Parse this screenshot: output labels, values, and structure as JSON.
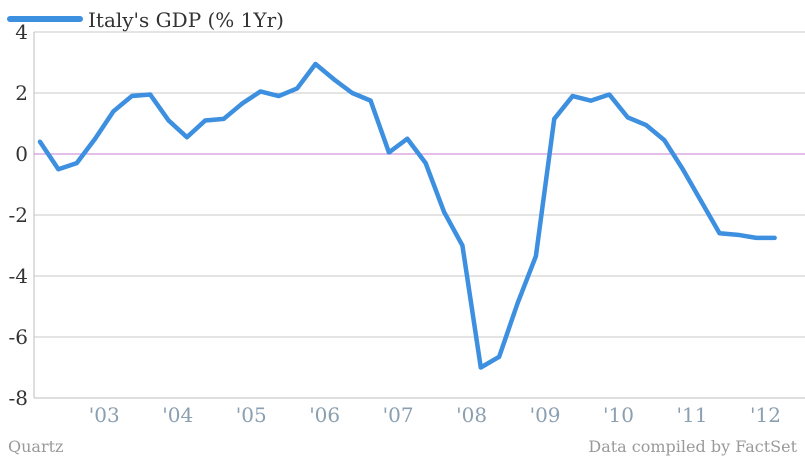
{
  "chart_data": {
    "type": "line",
    "title": "",
    "xlabel": "",
    "ylabel": "",
    "x_tick_labels": [
      "'03",
      "'04",
      "'05",
      "'06",
      "'07",
      "'08",
      "'09",
      "'10",
      "'11",
      "'12"
    ],
    "y_tick_labels": [
      "4",
      "2",
      "0",
      "-2",
      "-4",
      "-6",
      "-8"
    ],
    "y_ticks": [
      4,
      2,
      0,
      -2,
      -4,
      -6,
      -8
    ],
    "ylim": [
      -8,
      4
    ],
    "x_range": [
      2002.5,
      2012.75
    ],
    "grid": "horizontal",
    "zero_line_color": "#c97fd6",
    "series_color": "#3d8fe0",
    "legend_position": "top-left",
    "series": [
      {
        "name": "Italy's GDP (% 1Yr)",
        "x": [
          2002.5,
          2002.75,
          2003.0,
          2003.25,
          2003.5,
          2003.75,
          2004.0,
          2004.25,
          2004.5,
          2004.75,
          2005.0,
          2005.25,
          2005.5,
          2005.75,
          2006.0,
          2006.25,
          2006.5,
          2006.75,
          2007.0,
          2007.25,
          2007.5,
          2007.75,
          2008.0,
          2008.25,
          2008.5,
          2008.75,
          2009.0,
          2009.25,
          2009.5,
          2009.75,
          2010.0,
          2010.25,
          2010.5,
          2010.75,
          2011.0,
          2011.25,
          2011.5,
          2011.75,
          2012.0,
          2012.25,
          2012.5
        ],
        "values": [
          0.4,
          -0.5,
          -0.3,
          0.5,
          1.4,
          1.9,
          1.95,
          1.1,
          0.55,
          1.1,
          1.15,
          1.65,
          2.05,
          1.9,
          2.15,
          2.95,
          2.45,
          2.0,
          1.75,
          0.05,
          0.5,
          -0.3,
          -1.9,
          -3.0,
          -7.0,
          -6.65,
          -4.9,
          -3.35,
          1.15,
          1.9,
          1.75,
          1.95,
          1.2,
          0.95,
          0.45,
          -0.5,
          -1.55,
          -2.6,
          -2.65,
          -2.75,
          -2.75
        ]
      }
    ]
  },
  "legend": {
    "label": "Italy's GDP (% 1Yr)"
  },
  "footer": {
    "left": "Quartz",
    "right": "Data compiled by FactSet"
  }
}
